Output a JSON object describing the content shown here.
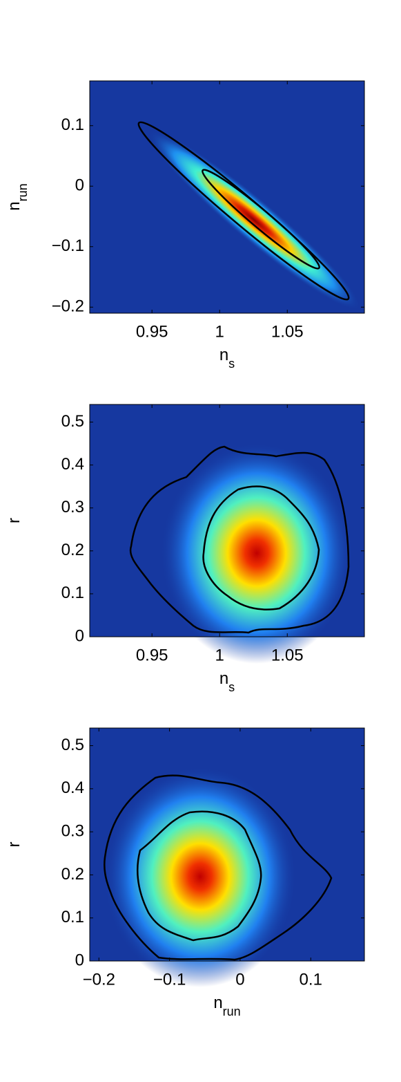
{
  "chart_data": [
    {
      "type": "density",
      "x_label": "n",
      "x_label_sub": "s",
      "y_label": "n",
      "y_label_sub": "run",
      "xlim": [
        0.904,
        1.107
      ],
      "xticks": [
        0.95,
        1,
        1.05
      ],
      "ylim": [
        -0.21,
        0.174
      ],
      "yticks": [
        {
          "value": 0.1,
          "label": "0.1"
        },
        0,
        {
          "value": -0.1,
          "label": "−0.1"
        },
        {
          "value": -0.2,
          "label": "−0.2"
        }
      ]
    },
    {
      "type": "density",
      "x_label": "n",
      "x_label_sub": "s",
      "y_label": "r",
      "xlim": [
        0.904,
        1.107
      ],
      "xticks": [
        0.95,
        1,
        1.05
      ],
      "ylim": [
        0,
        0.541
      ],
      "yticks": [
        0,
        0.1,
        0.2,
        0.3,
        0.4,
        0.5
      ]
    },
    {
      "type": "density",
      "x_label": "n",
      "x_label_sub": "run",
      "y_label": "r",
      "xlim": [
        -0.213,
        0.176
      ],
      "xticks": [
        {
          "value": -0.2,
          "label": "−0.2"
        },
        {
          "value": -0.1,
          "label": "−0.1"
        },
        0,
        0.1
      ],
      "ylim": [
        0,
        0.541
      ],
      "yticks": [
        0,
        0.1,
        0.2,
        0.3,
        0.4,
        0.5
      ]
    }
  ]
}
